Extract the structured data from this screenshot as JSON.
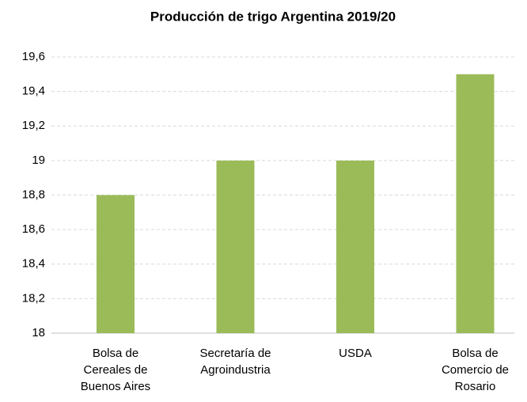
{
  "chart_data": {
    "type": "bar",
    "title": "Producción de trigo Argentina 2019/20",
    "categories": [
      "Bolsa de Cereales de Buenos Aires",
      "Secretaría de Agroindustria",
      "USDA",
      "Bolsa de Comercio de Rosario"
    ],
    "values": [
      18.8,
      19,
      19,
      19.5
    ],
    "color": "#9bbb59",
    "ylim": [
      18,
      19.6
    ],
    "yticks": [
      18,
      {
        "value": 18.2,
        "label": "18,2"
      },
      {
        "value": 18.4,
        "label": "18,4"
      },
      {
        "value": 18.6,
        "label": "18,6"
      },
      {
        "value": 18.8,
        "label": "18,8"
      },
      19,
      {
        "value": 19.2,
        "label": "19,2"
      },
      {
        "value": 19.4,
        "label": "19,4"
      },
      {
        "value": 19.6,
        "label": "19,6"
      }
    ],
    "grid": true
  }
}
